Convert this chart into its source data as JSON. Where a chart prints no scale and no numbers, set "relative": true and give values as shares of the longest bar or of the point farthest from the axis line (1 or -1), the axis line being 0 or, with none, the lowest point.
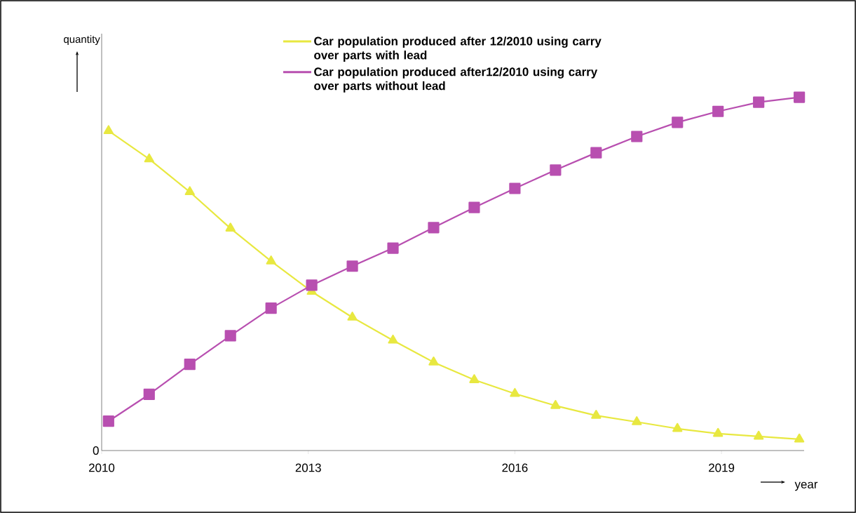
{
  "chart_data": {
    "type": "line",
    "relative": true,
    "xlabel": "year",
    "ylabel": "quantity",
    "x": [
      2010.1,
      2010.69,
      2011.28,
      2011.87,
      2012.46,
      2013.05,
      2013.64,
      2014.23,
      2014.82,
      2015.41,
      2016.0,
      2016.59,
      2017.18,
      2017.77,
      2018.36,
      2018.95,
      2019.54,
      2020.13
    ],
    "xlim": [
      2010,
      2020.2
    ],
    "xticks": [
      2010,
      2013,
      2016,
      2019
    ],
    "series": [
      {
        "name": "Car population  produced  after 12/2010 using carry over parts with lead",
        "color": "#e8e840",
        "marker": "triangle",
        "values": [
          0.905,
          0.825,
          0.732,
          0.629,
          0.536,
          0.45,
          0.377,
          0.312,
          0.25,
          0.2,
          0.161,
          0.127,
          0.099,
          0.081,
          0.062,
          0.048,
          0.04,
          0.032
        ]
      },
      {
        "name": "Car population produced  after12/2010 using carry over parts  without lead",
        "color": "#b84fb0",
        "marker": "square",
        "values": [
          0.083,
          0.159,
          0.244,
          0.325,
          0.403,
          0.468,
          0.522,
          0.573,
          0.631,
          0.688,
          0.742,
          0.794,
          0.843,
          0.889,
          0.929,
          0.96,
          0.986,
          1.0
        ]
      }
    ],
    "legend": "top",
    "annotations": [
      "0"
    ]
  }
}
